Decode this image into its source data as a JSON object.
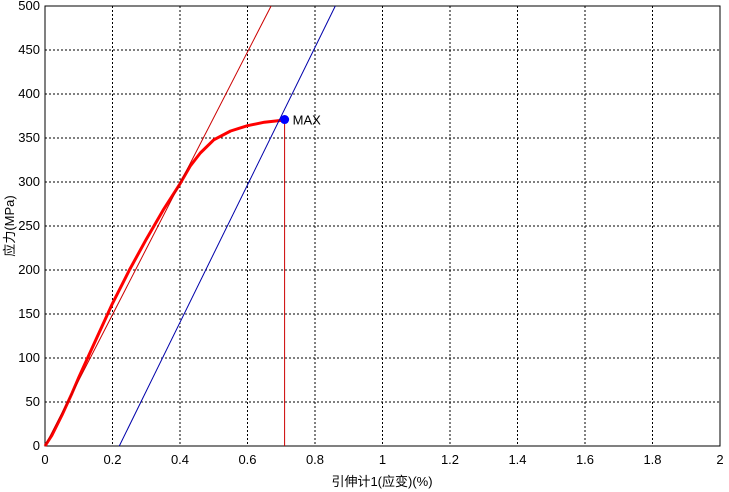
{
  "chart_data": {
    "type": "line",
    "xlabel": "引伸计1(应变)(%)",
    "ylabel": "应力(MPa)",
    "xlim": [
      0,
      2
    ],
    "ylim": [
      0,
      500
    ],
    "grid": true,
    "x_ticks": [
      0,
      0.2,
      0.4,
      0.6,
      0.8,
      1,
      1.2,
      1.4,
      1.6,
      1.8,
      2
    ],
    "x_tick_labels": [
      "0",
      "0.2",
      "0.4",
      "0.6",
      "0.8",
      "1",
      "1.2",
      "1.4",
      "1.6",
      "1.8",
      "2"
    ],
    "y_ticks": [
      0,
      50,
      100,
      150,
      200,
      250,
      300,
      350,
      400,
      450,
      500
    ],
    "y_tick_labels": [
      "0",
      "50",
      "100",
      "150",
      "200",
      "250",
      "300",
      "350",
      "400",
      "450",
      "500"
    ],
    "series": [
      {
        "kind": "curve",
        "color": "#ff0000",
        "x": [
          0.0,
          0.02,
          0.05,
          0.08,
          0.1,
          0.15,
          0.2,
          0.25,
          0.3,
          0.35,
          0.4,
          0.43,
          0.46,
          0.5,
          0.55,
          0.6,
          0.65,
          0.7,
          0.71
        ],
        "y": [
          0,
          12,
          35,
          60,
          78,
          120,
          162,
          200,
          235,
          268,
          298,
          318,
          333,
          348,
          358,
          364,
          368,
          370,
          371
        ]
      },
      {
        "kind": "modulus-line",
        "color": "#cc0000",
        "x": [
          0.0,
          0.67
        ],
        "y": [
          0,
          500
        ]
      },
      {
        "kind": "offset-line",
        "color": "#0000aa",
        "x": [
          0.22,
          0.86
        ],
        "y": [
          0,
          500
        ]
      },
      {
        "kind": "max-drop-line",
        "color": "#cc0000",
        "x": [
          0.71,
          0.71
        ],
        "y": [
          0,
          371
        ]
      }
    ],
    "annotations": [
      {
        "text": "MAX",
        "x": 0.71,
        "y": 371,
        "marker_color": "#0000ff"
      }
    ]
  }
}
